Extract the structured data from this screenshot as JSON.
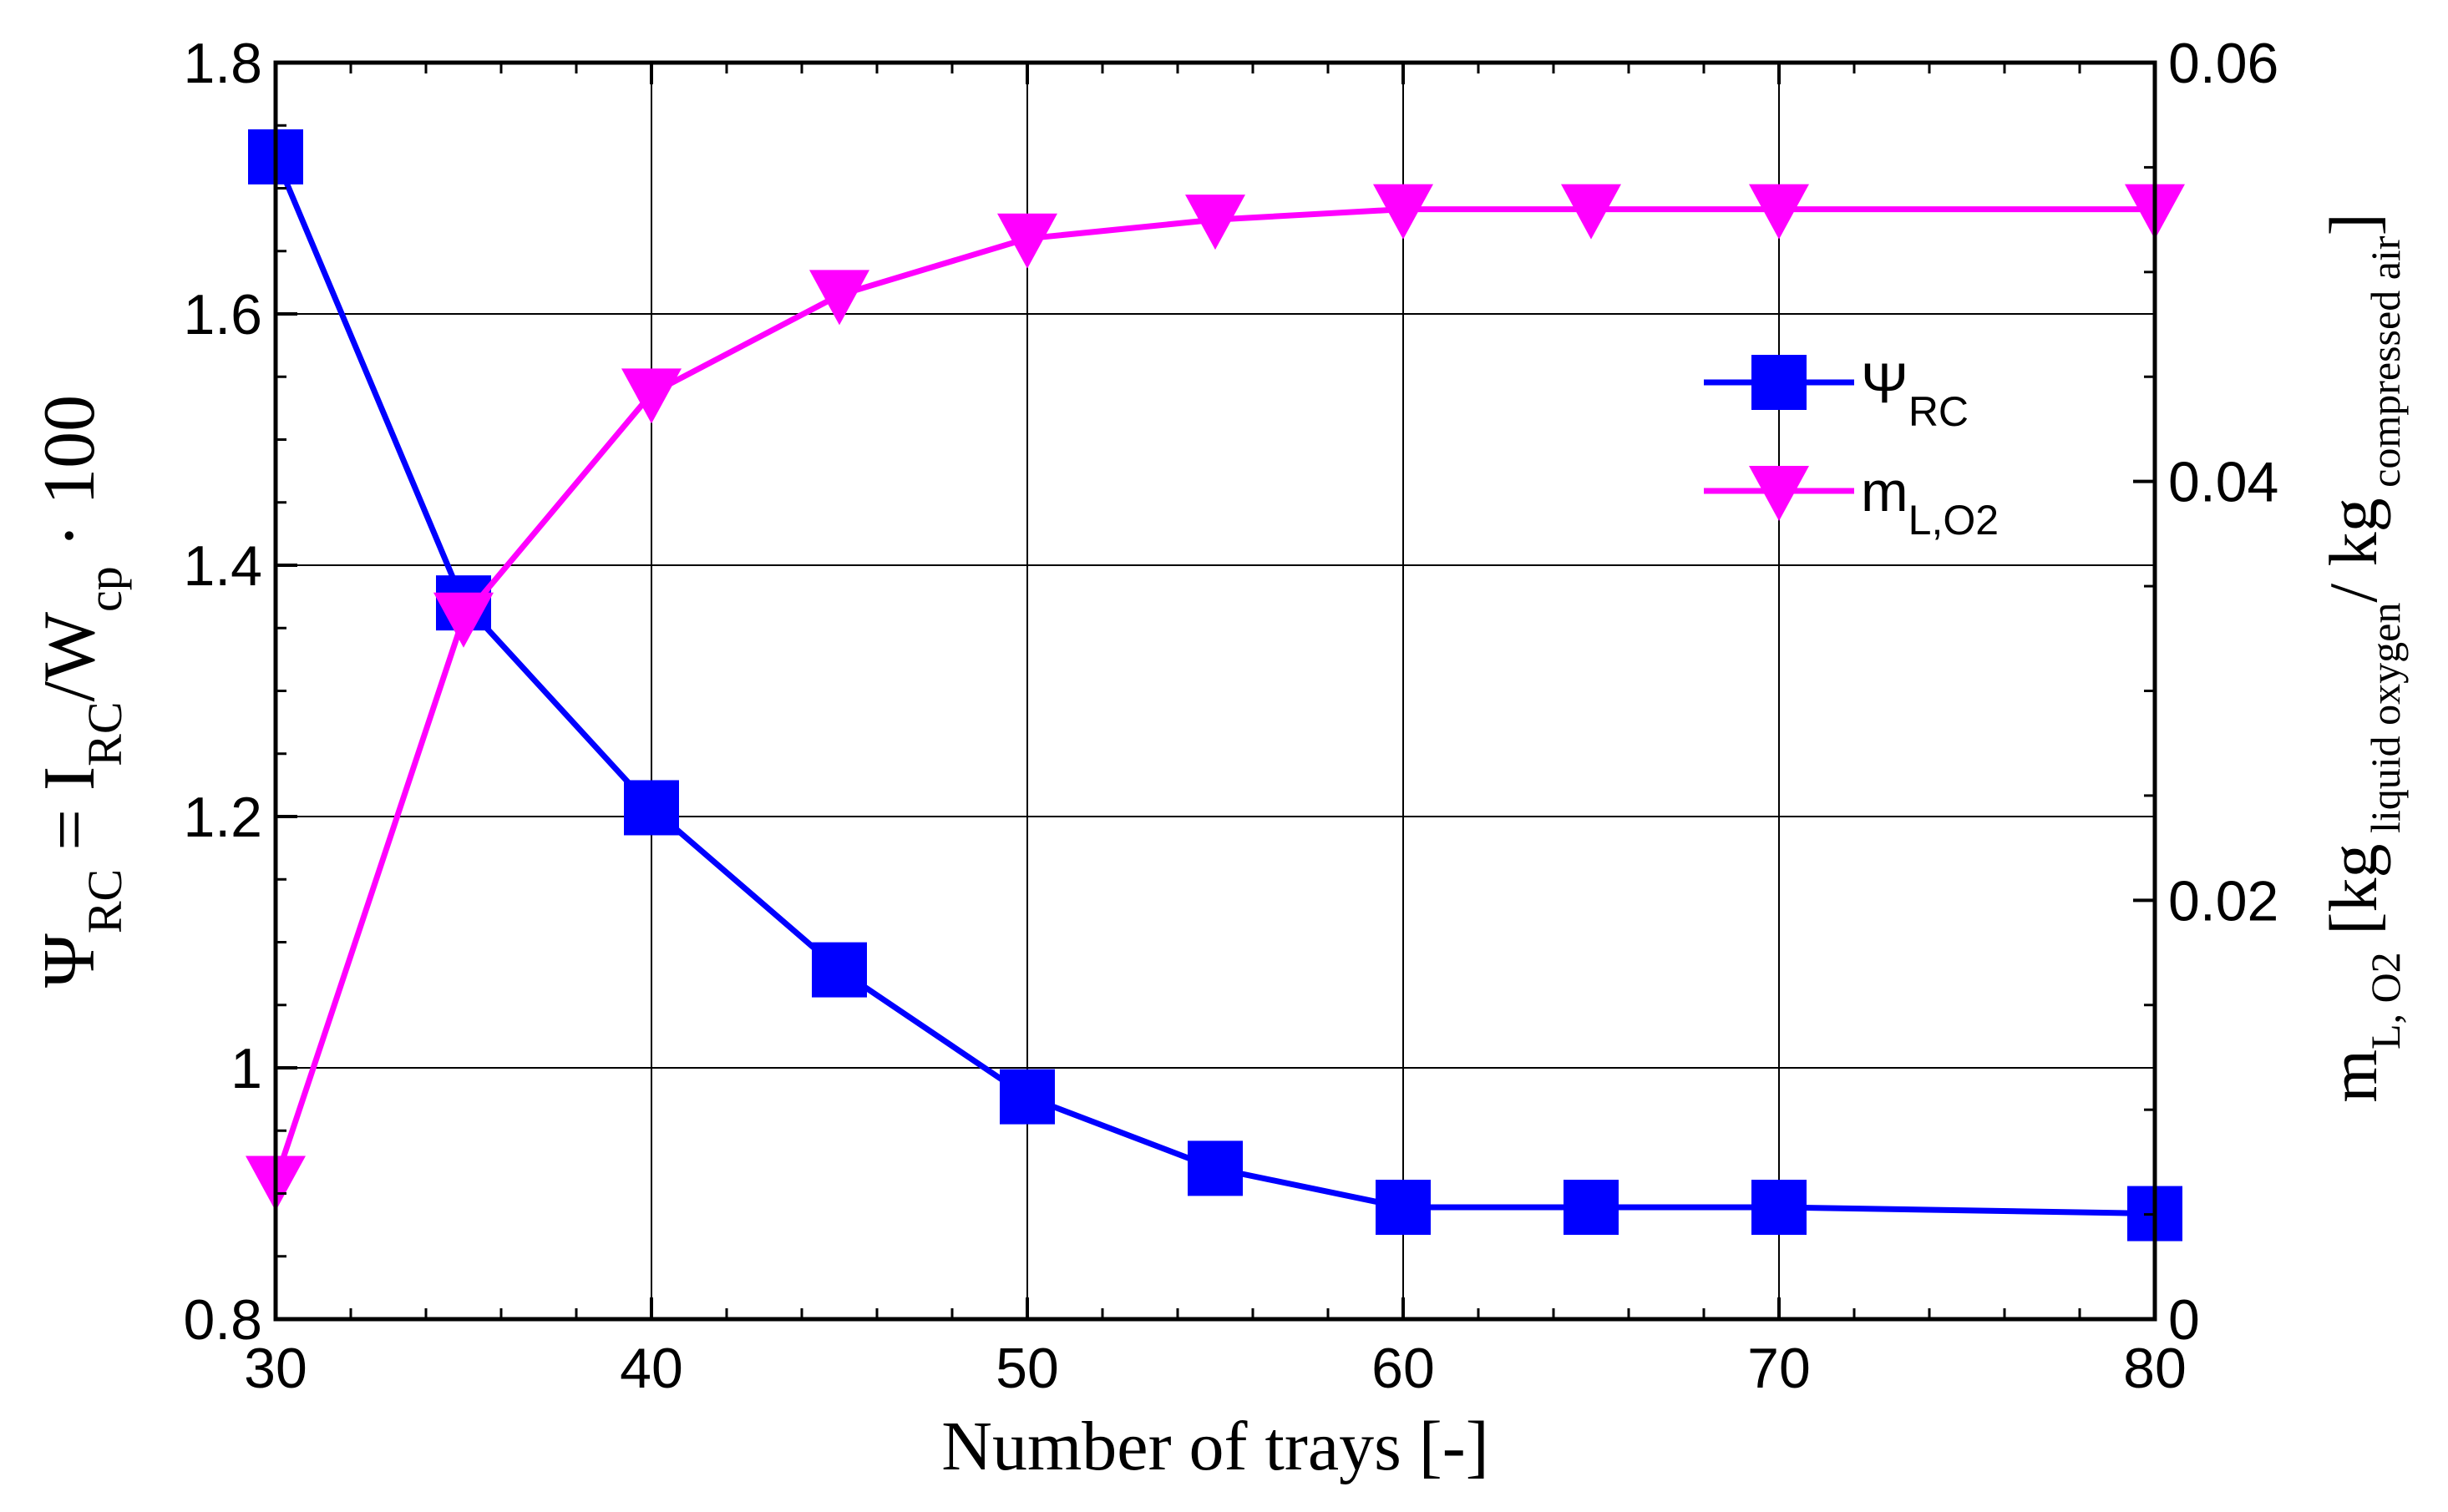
{
  "chart_data": {
    "type": "line",
    "xlabel": "Number of trays [-]",
    "ylabel_left": {
      "parts": [
        {
          "text": "Ψ"
        },
        {
          "text": "RC",
          "sub": true
        },
        {
          "text": "  =  I"
        },
        {
          "text": "RC",
          "sub": true
        },
        {
          "text": "/W"
        },
        {
          "text": "cp",
          "sub": true
        },
        {
          "text": " · 100"
        }
      ]
    },
    "ylabel_right": {
      "parts": [
        {
          "text": "m"
        },
        {
          "text": "L, O2",
          "sub": true
        },
        {
          "text": " [kg"
        },
        {
          "text": " liquid oxygen",
          "sub": true
        },
        {
          "text": "/ kg"
        },
        {
          "text": " compressed air",
          "sub": true
        },
        {
          "text": "]"
        }
      ]
    },
    "xlim": [
      30,
      80
    ],
    "ylim_left": [
      0.8,
      1.8
    ],
    "ylim_right": [
      0,
      0.06
    ],
    "x_ticks": [
      "30",
      "40",
      "50",
      "60",
      "70",
      "80"
    ],
    "y_left_ticks": [
      "0.8",
      "1",
      "1.2",
      "1.4",
      "1.6",
      "1.8"
    ],
    "y_right_ticks": [
      "0",
      "0.02",
      "0.04",
      "0.06"
    ],
    "grid": true,
    "legend_position": "upper-right-inside",
    "series": [
      {
        "name": "Ψ_RC",
        "legend": {
          "main": "Ψ",
          "sub": "RC"
        },
        "axis": "left",
        "color": "#0000ff",
        "marker": "square",
        "x": [
          30,
          35,
          40,
          45,
          50,
          55,
          60,
          65,
          70,
          80
        ],
        "y": [
          1.725,
          1.37,
          1.207,
          1.078,
          0.977,
          0.92,
          0.889,
          0.889,
          0.889,
          0.884
        ]
      },
      {
        "name": "m_L,O2",
        "legend": {
          "main": "m",
          "sub": "L,O2"
        },
        "axis": "right",
        "color": "#ff00ff",
        "marker": "triangle-down",
        "x": [
          30,
          35,
          40,
          45,
          50,
          55,
          60,
          65,
          70,
          80
        ],
        "y": [
          0.0066,
          0.0335,
          0.0442,
          0.0489,
          0.0516,
          0.0525,
          0.053,
          0.053,
          0.053,
          0.053
        ]
      }
    ]
  }
}
